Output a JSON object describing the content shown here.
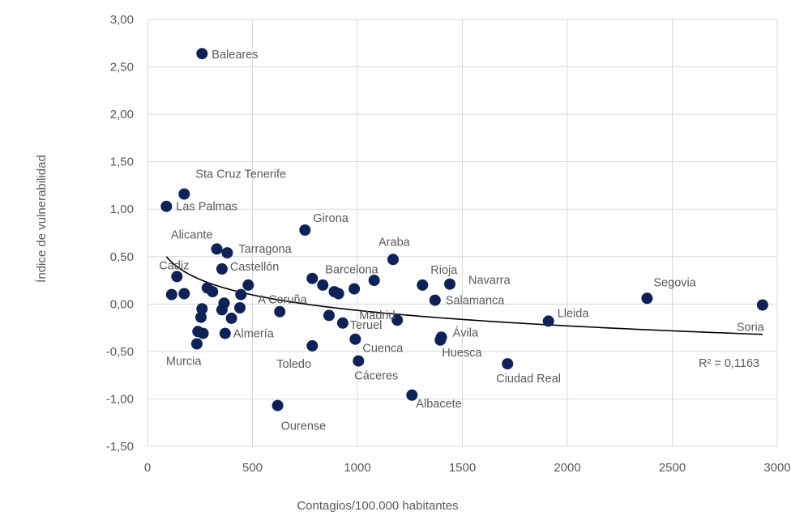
{
  "chart_data": {
    "type": "scatter",
    "title": "",
    "xlabel": "Contagios/100.000 habitantes",
    "ylabel": "Índice de vulnerabilidad",
    "xlim": [
      0,
      3000
    ],
    "ylim": [
      -1.5,
      3.0
    ],
    "x_ticks": [
      0,
      500,
      1000,
      1500,
      2000,
      2500,
      3000
    ],
    "y_ticks": [
      3.0,
      2.5,
      2.0,
      1.5,
      1.0,
      0.5,
      0.0,
      -0.5,
      -1.0,
      -1.5
    ],
    "x_tick_labels": [
      "0",
      "500",
      "1000",
      "1500",
      "2000",
      "2500",
      "3000"
    ],
    "y_tick_labels": [
      "3,00",
      "2,50",
      "2,00",
      "1,50",
      "1,00",
      "0,50",
      "0,00",
      "-0,50",
      "-1,00",
      "-1,50"
    ],
    "grid": true,
    "marker_color": "#0d2259",
    "trendline": {
      "type": "logarithmic",
      "x_range": [
        90,
        2930
      ],
      "r2_label": "R² = 0,1163"
    },
    "points": [
      {
        "label": "Baleares",
        "x": 260,
        "y": 2.64
      },
      {
        "label": "Sta Cruz Tenerife",
        "x": 175,
        "y": 1.16
      },
      {
        "label": "Las Palmas",
        "x": 90,
        "y": 1.03
      },
      {
        "label": "Girona",
        "x": 750,
        "y": 0.78
      },
      {
        "label": "Alicante",
        "x": 330,
        "y": 0.58
      },
      {
        "label": "Tarragona",
        "x": 380,
        "y": 0.54
      },
      {
        "label": "Araba",
        "x": 1170,
        "y": 0.47
      },
      {
        "label": "Castellón",
        "x": 355,
        "y": 0.37
      },
      {
        "label": "Cadiz",
        "x": 140,
        "y": 0.29
      },
      {
        "label": "Barcelona",
        "x": 785,
        "y": 0.27
      },
      {
        "label": "Rioja",
        "x": 1310,
        "y": 0.2
      },
      {
        "label": "Navarra",
        "x": 1440,
        "y": 0.21
      },
      {
        "label": "Segovia",
        "x": 2380,
        "y": 0.06
      },
      {
        "label": "Salamanca",
        "x": 1370,
        "y": 0.04
      },
      {
        "label": "Soria",
        "x": 2930,
        "y": -0.01
      },
      {
        "label": "A Coruña",
        "x": 630,
        "y": -0.08
      },
      {
        "label": "Madrid",
        "x": 1190,
        "y": -0.17
      },
      {
        "label": "Lleida",
        "x": 1910,
        "y": -0.18
      },
      {
        "label": "Almería",
        "x": 370,
        "y": -0.31
      },
      {
        "label": "Teruel",
        "x": 930,
        "y": -0.2
      },
      {
        "label": "Ávila",
        "x": 1400,
        "y": -0.35
      },
      {
        "label": "Cuenca",
        "x": 990,
        "y": -0.37
      },
      {
        "label": "Huesca",
        "x": 1395,
        "y": -0.38
      },
      {
        "label": "Murcia",
        "x": 235,
        "y": -0.42
      },
      {
        "label": "Toledo",
        "x": 785,
        "y": -0.44
      },
      {
        "label": "Cáceres",
        "x": 1005,
        "y": -0.6
      },
      {
        "label": "Ciudad Real",
        "x": 1715,
        "y": -0.63
      },
      {
        "label": "Albacete",
        "x": 1260,
        "y": -0.96
      },
      {
        "label": "Ourense",
        "x": 620,
        "y": -1.07
      },
      {
        "label": "",
        "x": 115,
        "y": 0.1
      },
      {
        "label": "",
        "x": 175,
        "y": 0.11
      },
      {
        "label": "",
        "x": 285,
        "y": 0.17
      },
      {
        "label": "",
        "x": 310,
        "y": 0.13
      },
      {
        "label": "",
        "x": 445,
        "y": 0.1
      },
      {
        "label": "",
        "x": 480,
        "y": 0.2
      },
      {
        "label": "",
        "x": 260,
        "y": -0.05
      },
      {
        "label": "",
        "x": 365,
        "y": 0.01
      },
      {
        "label": "",
        "x": 355,
        "y": -0.06
      },
      {
        "label": "",
        "x": 255,
        "y": -0.14
      },
      {
        "label": "",
        "x": 400,
        "y": -0.15
      },
      {
        "label": "",
        "x": 440,
        "y": -0.04
      },
      {
        "label": "",
        "x": 240,
        "y": -0.29
      },
      {
        "label": "",
        "x": 265,
        "y": -0.31
      },
      {
        "label": "",
        "x": 835,
        "y": 0.2
      },
      {
        "label": "",
        "x": 890,
        "y": 0.13
      },
      {
        "label": "",
        "x": 910,
        "y": 0.11
      },
      {
        "label": "",
        "x": 985,
        "y": 0.16
      },
      {
        "label": "",
        "x": 1080,
        "y": 0.25
      },
      {
        "label": "",
        "x": 865,
        "y": -0.12
      }
    ]
  }
}
